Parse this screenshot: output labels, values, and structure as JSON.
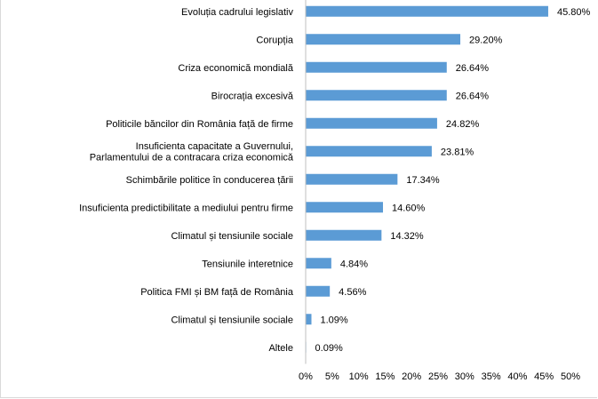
{
  "chart_data": {
    "type": "bar",
    "orientation": "horizontal",
    "categories": [
      [
        "Evoluția cadrului legislativ"
      ],
      [
        "Corupția"
      ],
      [
        "Criza economică mondială"
      ],
      [
        "Birocrația excesivă"
      ],
      [
        "Politicile  băncilor din România față de firme"
      ],
      [
        "Insuficienta capacitate a Guvernului,",
        "Parlamentului de a contracara criza economică"
      ],
      [
        "Schimbările politice în conducerea țării"
      ],
      [
        "Insuficienta predictibilitate a mediului pentru firme"
      ],
      [
        "Climatul și tensiunile sociale"
      ],
      [
        "Tensiunile interetnice"
      ],
      [
        "Politica FMI și BM față de România"
      ],
      [
        "Climatul și tensiunile sociale"
      ],
      [
        "Altele"
      ]
    ],
    "values": [
      45.8,
      29.2,
      26.64,
      26.64,
      24.82,
      23.81,
      17.34,
      14.6,
      14.32,
      4.84,
      4.56,
      1.09,
      0.09
    ],
    "value_labels": [
      "45.80%",
      "29.20%",
      "26.64%",
      "26.64%",
      "24.82%",
      "23.81%",
      "17.34%",
      "14.60%",
      "14.32%",
      "4.84%",
      "4.56%",
      "1.09%",
      "0.09%"
    ],
    "x_ticks": [
      0,
      5,
      10,
      15,
      20,
      25,
      30,
      35,
      40,
      45,
      50
    ],
    "x_tick_labels": [
      "0%",
      "5%",
      "10%",
      "15%",
      "20%",
      "25%",
      "30%",
      "35%",
      "40%",
      "45%",
      "50%"
    ],
    "xlim": [
      0,
      50
    ],
    "bar_color": "#5B9BD5",
    "grid": false,
    "legend": "none"
  }
}
